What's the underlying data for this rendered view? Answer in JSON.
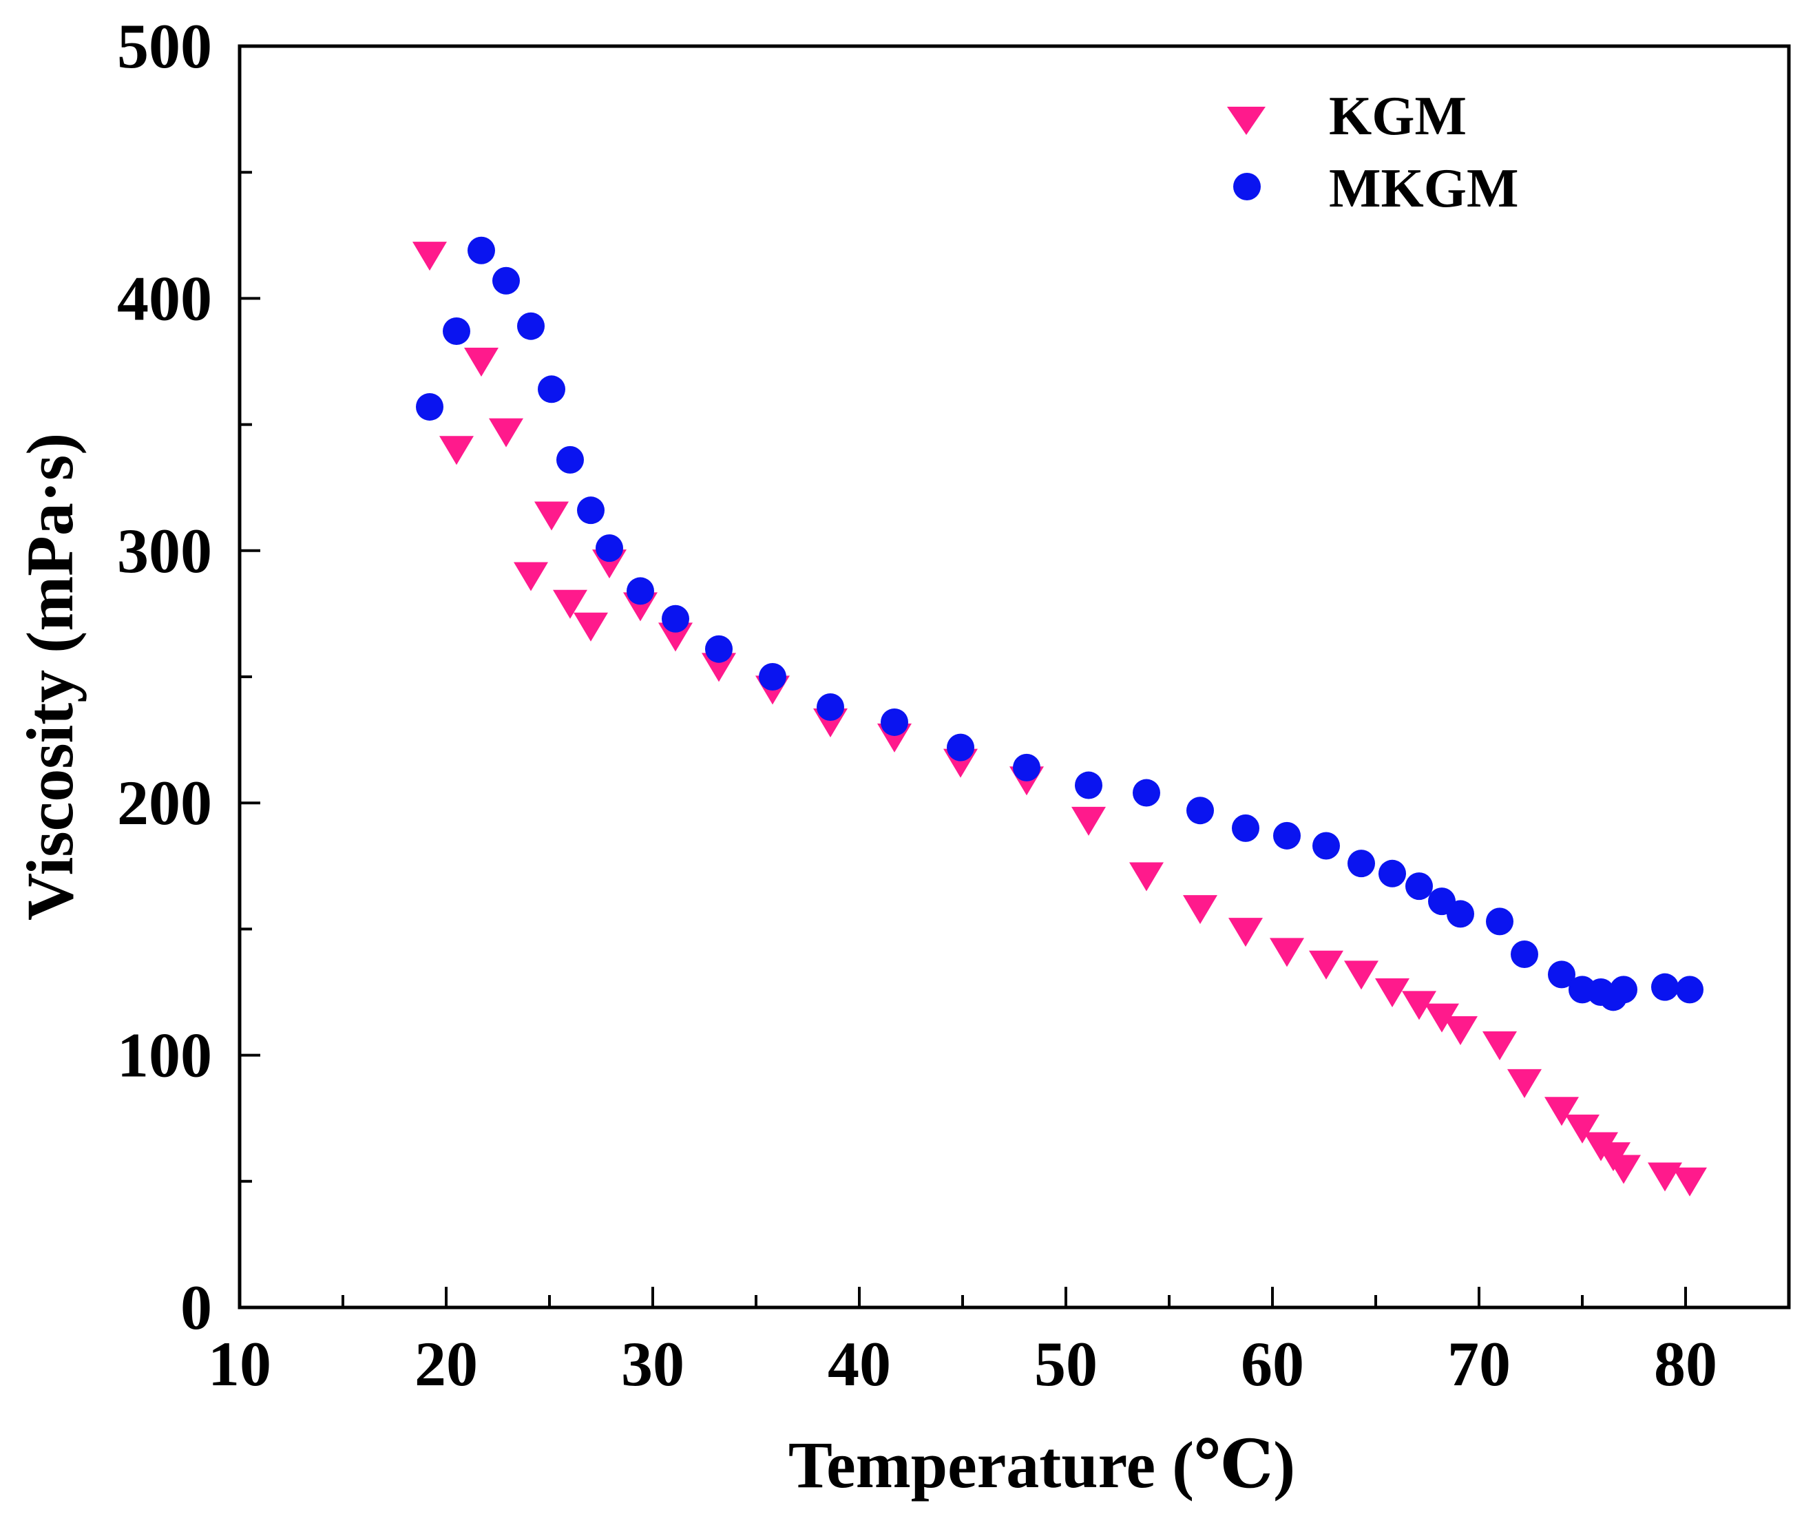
{
  "chart_data": {
    "type": "scatter",
    "title": "",
    "xlabel": "Temperature (℃)",
    "ylabel": "Viscosity (mPa·s)",
    "xlim": [
      10,
      85
    ],
    "ylim": [
      0,
      500
    ],
    "xticks": [
      10,
      20,
      30,
      40,
      50,
      60,
      70,
      80
    ],
    "yticks": [
      0,
      100,
      200,
      300,
      400,
      500
    ],
    "legend_position": "top-right",
    "series": [
      {
        "name": "KGM",
        "marker": "triangle-down",
        "color": "#ff1a8c",
        "x": [
          19.2,
          20.5,
          21.7,
          22.9,
          24.1,
          25.1,
          26.0,
          27.0,
          27.9,
          29.4,
          31.1,
          33.2,
          35.8,
          38.6,
          41.7,
          44.9,
          48.1,
          51.1,
          53.9,
          56.5,
          58.7,
          60.7,
          62.6,
          64.3,
          65.8,
          67.1,
          68.2,
          69.1,
          71.0,
          72.2,
          74.0,
          75.0,
          75.9,
          76.5,
          77.0,
          79.0,
          80.2
        ],
        "y": [
          417,
          340,
          375,
          347,
          290,
          314,
          279,
          270,
          295,
          278,
          266,
          254,
          245,
          232,
          226,
          216,
          209,
          193,
          171,
          158,
          149,
          141,
          136,
          132,
          125,
          120,
          115,
          110,
          104,
          89,
          78,
          71,
          64,
          60,
          55,
          52,
          50
        ]
      },
      {
        "name": "MKGM",
        "marker": "circle",
        "color": "#0a14f0",
        "x": [
          19.2,
          20.5,
          21.7,
          22.9,
          24.1,
          25.1,
          26.0,
          27.0,
          27.9,
          29.4,
          31.1,
          33.2,
          35.8,
          38.6,
          41.7,
          44.9,
          48.1,
          51.1,
          53.9,
          56.5,
          58.7,
          60.7,
          62.6,
          64.3,
          65.8,
          67.1,
          68.2,
          69.1,
          71.0,
          72.2,
          74.0,
          75.0,
          75.9,
          76.5,
          77.0,
          79.0,
          80.2
        ],
        "y": [
          357,
          387,
          419,
          407,
          389,
          364,
          336,
          316,
          301,
          284,
          273,
          261,
          250,
          238,
          232,
          222,
          214,
          207,
          204,
          197,
          190,
          187,
          183,
          176,
          172,
          167,
          161,
          156,
          153,
          140,
          132,
          126,
          125,
          123,
          126,
          127,
          126
        ]
      }
    ]
  }
}
